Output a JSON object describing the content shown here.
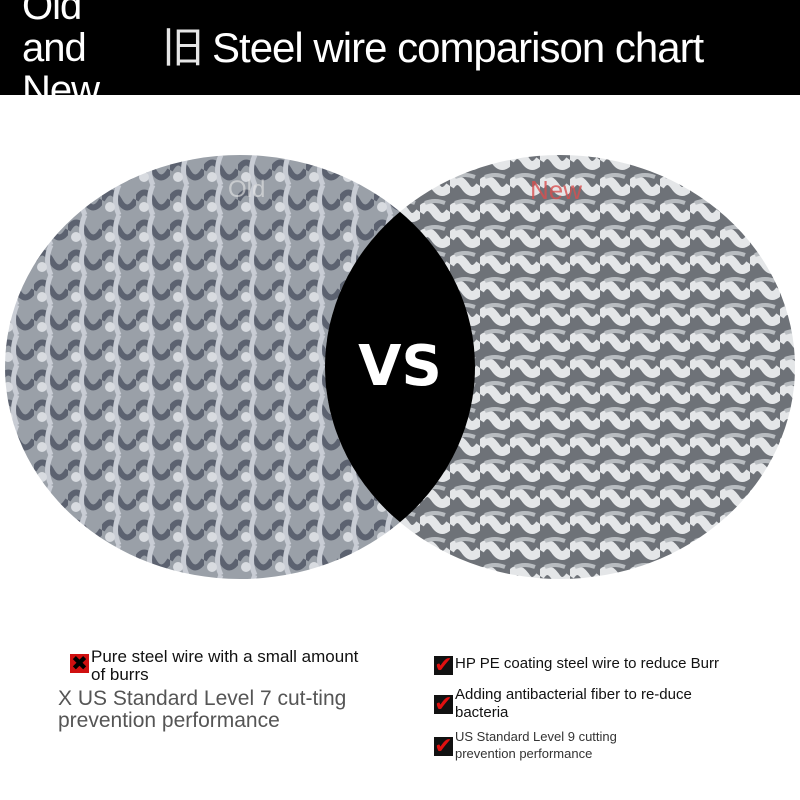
{
  "header": {
    "title_part1": "Old and New",
    "title_glyph": "旧",
    "title_part2": "Steel wire comparison chart"
  },
  "comparison": {
    "old_label": "Old",
    "new_label": "New",
    "vs_label": "VS"
  },
  "old_features": [
    {
      "icon": "cross-icon",
      "text": "Pure steel wire with a small amount of burrs"
    },
    {
      "icon": "none",
      "text": "X US Standard Level 7 cut-ting prevention performance"
    }
  ],
  "new_features": [
    {
      "icon": "check-icon",
      "text": "HP PE coating steel wire to reduce Burr"
    },
    {
      "icon": "check-icon",
      "text": "Adding antibacterial fiber to re-duce bacteria"
    },
    {
      "icon": "check-icon",
      "text": "US Standard Level 9 cutting prevention performance"
    }
  ],
  "colors": {
    "banner": "#000000",
    "check": "#e01010",
    "new_label": "#d85050"
  }
}
